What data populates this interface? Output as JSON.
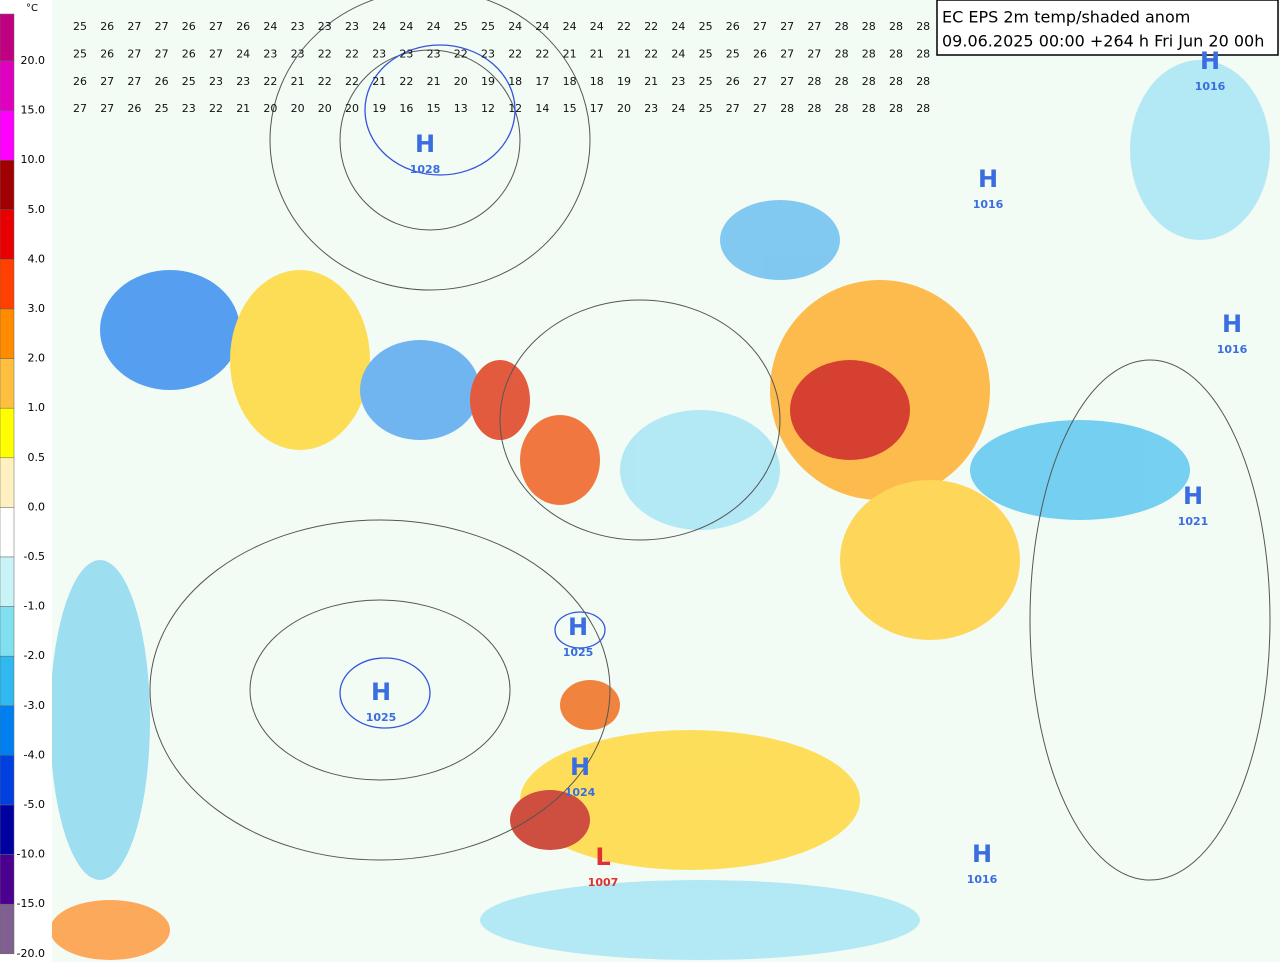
{
  "title": {
    "line1": "EC EPS 2m temp/shaded anom",
    "line2": "09.06.2025 00:00 +264 h Fri Jun 20 00h"
  },
  "colorbar": {
    "unit": "°C",
    "labels": [
      "20.0",
      "15.0",
      "10.0",
      "5.0",
      "4.0",
      "3.0",
      "2.0",
      "1.0",
      "0.5",
      "0.0",
      "-0.5",
      "-1.0",
      "-2.0",
      "-3.0",
      "-4.0",
      "-5.0",
      "-10.0",
      "-15.0",
      "-20.0"
    ],
    "colors": [
      "#c00080",
      "#e000c0",
      "#ff00ff",
      "#a00000",
      "#e80000",
      "#ff4000",
      "#ff8c00",
      "#ffc040",
      "#ffff00",
      "#fff0c0",
      "#ffffff",
      "#c8f4f8",
      "#80e0f0",
      "#30b8f0",
      "#0080f0",
      "#0040e0",
      "#0000a0",
      "#4b0090",
      "#806090"
    ]
  },
  "pressure_centers": [
    {
      "kind": "H",
      "value": "1028"
    },
    {
      "kind": "H",
      "value": "1025"
    },
    {
      "kind": "H",
      "value": "1025"
    },
    {
      "kind": "H",
      "value": "1024"
    },
    {
      "kind": "L",
      "value": "1007"
    },
    {
      "kind": "H",
      "value": "1016"
    },
    {
      "kind": "H",
      "value": "1016"
    },
    {
      "kind": "H",
      "value": "1016"
    },
    {
      "kind": "H",
      "value": "1021"
    },
    {
      "kind": "H",
      "value": "1016"
    }
  ],
  "grid_values": [
    [
      25,
      26,
      27,
      27,
      26,
      27,
      26,
      24,
      23,
      23,
      23,
      24,
      24,
      24,
      25,
      25,
      24,
      24,
      24,
      24,
      22,
      22,
      24,
      25,
      26,
      27,
      27,
      27,
      28,
      28,
      28,
      28
    ],
    [
      25,
      26,
      27,
      27,
      26,
      27,
      24,
      23,
      23,
      22,
      22,
      23,
      23,
      23,
      22,
      23,
      22,
      22,
      21,
      21,
      21,
      22,
      24,
      25,
      25,
      26,
      27,
      27,
      28,
      28,
      28,
      28
    ],
    [
      26,
      27,
      27,
      26,
      25,
      23,
      23,
      22,
      21,
      22,
      22,
      21,
      22,
      21,
      20,
      19,
      18,
      17,
      18,
      18,
      19,
      21,
      23,
      25,
      26,
      27,
      27,
      28,
      28,
      28,
      28,
      28
    ],
    [
      27,
      27,
      26,
      25,
      23,
      22,
      21,
      20,
      20,
      20,
      20,
      19,
      16,
      15,
      13,
      12,
      12,
      14,
      15,
      17,
      20,
      23,
      24,
      25,
      27,
      27,
      28,
      28,
      28,
      28,
      28,
      28
    ]
  ]
}
